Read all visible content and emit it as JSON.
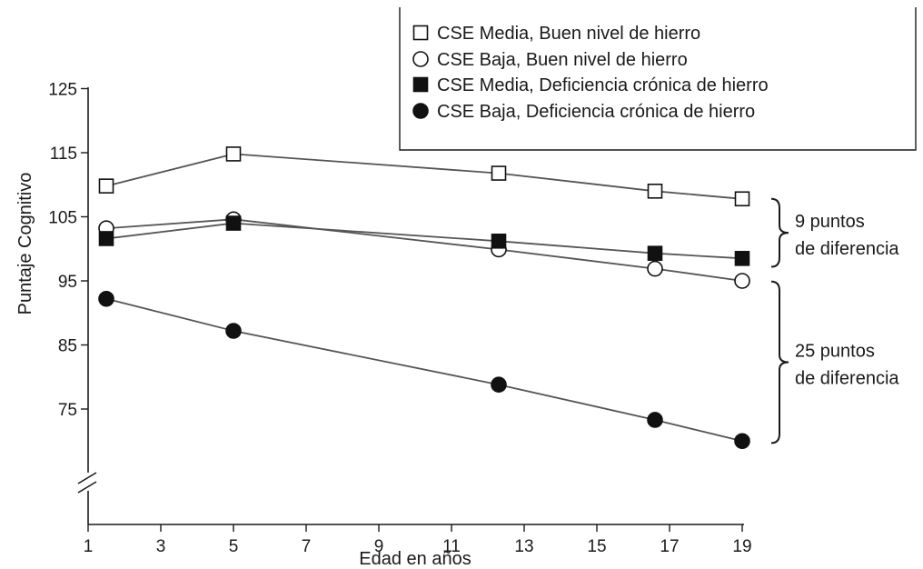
{
  "chart_data": {
    "type": "line",
    "xlabel": "Edad en años",
    "ylabel": "Puntaje Cognitivo",
    "xlim": [
      1,
      19
    ],
    "ylim": [
      65,
      125
    ],
    "y_axis_break": true,
    "x_ticks": [
      1,
      3,
      5,
      7,
      9,
      11,
      13,
      15,
      17,
      19
    ],
    "y_ticks": [
      75,
      85,
      95,
      105,
      115,
      125
    ],
    "x_tick_labels": [
      "1",
      "3",
      "5",
      "7",
      "9",
      "11",
      "13",
      "15",
      "17",
      "19"
    ],
    "y_tick_labels": [
      "75",
      "85",
      "95",
      "105",
      "115",
      "125"
    ],
    "grid": false,
    "legend_position": "top-right",
    "series": [
      {
        "name": "CSE Media, Buen nivel de hierro",
        "marker": "square-open",
        "x": [
          1.5,
          5,
          12.3,
          16.6,
          19
        ],
        "y": [
          109.8,
          114.8,
          111.8,
          109.0,
          107.8
        ]
      },
      {
        "name": "CSE Baja, Buen nivel de hierro",
        "marker": "circle-open",
        "x": [
          1.5,
          5,
          12.3,
          16.6,
          19
        ],
        "y": [
          103.2,
          104.6,
          99.9,
          96.9,
          95.0
        ]
      },
      {
        "name": "CSE Media, Deficiencia crónica de hierro",
        "marker": "square-filled",
        "x": [
          1.5,
          5,
          12.3,
          16.6,
          19
        ],
        "y": [
          101.6,
          104.0,
          101.2,
          99.3,
          98.5
        ]
      },
      {
        "name": "CSE Baja, Deficiencia crónica de hierro",
        "marker": "circle-filled",
        "x": [
          1.5,
          5,
          12.3,
          16.6,
          19
        ],
        "y": [
          92.2,
          87.2,
          78.8,
          73.3,
          70.0
        ]
      }
    ],
    "annotations": [
      {
        "line1": "9 puntos",
        "line2": "de diferencia",
        "y_range": [
          97.2,
          107.8
        ]
      },
      {
        "line1": "25 puntos",
        "line2": "de diferencia",
        "y_range": [
          69.7,
          94.9
        ]
      }
    ]
  },
  "colors": {
    "axis": "#1a1a1a",
    "line": "#555555",
    "marker_fill": "#111111",
    "marker_open_fill": "#ffffff"
  }
}
